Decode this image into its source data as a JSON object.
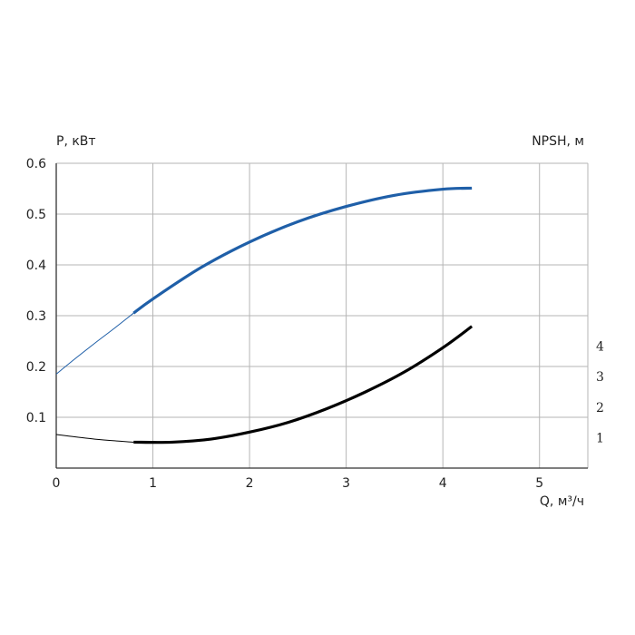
{
  "chart_data": {
    "type": "line",
    "title": "",
    "ylabel": "P, кВт",
    "y2label": "NPSH, м",
    "xlabel": "Q, м³/ч",
    "xlim": [
      0,
      5.5
    ],
    "ylim": [
      0,
      0.6
    ],
    "x_ticks": [
      "0",
      "1",
      "2",
      "3",
      "4",
      "5"
    ],
    "y_ticks": [
      "0.1",
      "0.2",
      "0.3",
      "0.4",
      "0.5",
      "0.6"
    ],
    "y2_ticks": [
      "1",
      "2",
      "3",
      "4"
    ],
    "y2_tick_values": [
      1,
      2,
      3,
      4
    ],
    "y2lim": [
      0,
      10
    ],
    "grid": true,
    "series": [
      {
        "axis": "left",
        "color": "#1f5fa8",
        "x": [
          0,
          0.2,
          0.4,
          0.6,
          0.8,
          1.0,
          1.5,
          2.0,
          2.5,
          3.0,
          3.5,
          4.0,
          4.3
        ],
        "values": [
          0.185,
          0.216,
          0.246,
          0.275,
          0.305,
          0.333,
          0.395,
          0.445,
          0.485,
          0.515,
          0.537,
          0.549,
          0.551
        ],
        "thin_until_x": 0.8
      },
      {
        "axis": "right",
        "color": "#000000",
        "x": [
          0,
          0.4,
          0.8,
          1.2,
          1.6,
          2.0,
          2.4,
          2.8,
          3.2,
          3.6,
          4.0,
          4.3
        ],
        "values": [
          1.1,
          0.95,
          0.85,
          0.85,
          0.95,
          1.18,
          1.5,
          1.95,
          2.5,
          3.15,
          3.95,
          4.65
        ],
        "thin_until_x": 0.8
      }
    ]
  }
}
